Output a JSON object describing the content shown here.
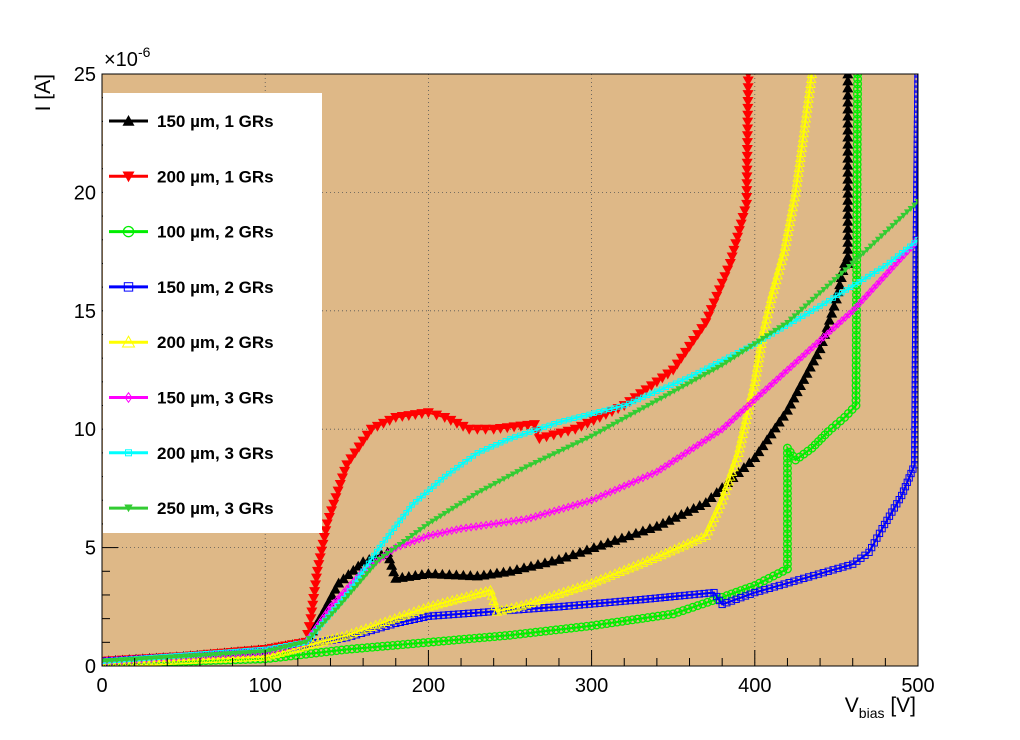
{
  "chart_data": {
    "type": "line",
    "xlabel": "V",
    "xlabel_sub": "bias",
    "xlabel_unit": " [V]",
    "ylabel": "I [A]",
    "y_exponent": "×10",
    "y_exponent_power": "-6",
    "xlim": [
      0,
      500
    ],
    "ylim": [
      0,
      25
    ],
    "x_ticks": [
      0,
      100,
      200,
      300,
      400,
      500
    ],
    "y_ticks": [
      0,
      5,
      10,
      15,
      20,
      25
    ],
    "x_tick_labels": [
      "0",
      "100",
      "200",
      "300",
      "400",
      "500"
    ],
    "y_tick_labels": [
      "0",
      "5",
      "10",
      "15",
      "20",
      "25"
    ],
    "grid": true,
    "plot_background": "#deb887",
    "legend_position": "top-left",
    "series": [
      {
        "name": "150  µm, 1 GRs",
        "color": "#000000",
        "marker": "triangle-up",
        "points": [
          [
            0,
            0.2
          ],
          [
            50,
            0.4
          ],
          [
            100,
            0.7
          ],
          [
            125,
            1.0
          ],
          [
            135,
            2.2
          ],
          [
            145,
            3.5
          ],
          [
            160,
            4.4
          ],
          [
            175,
            4.8
          ],
          [
            180,
            3.7
          ],
          [
            200,
            3.9
          ],
          [
            230,
            3.8
          ],
          [
            250,
            4.0
          ],
          [
            280,
            4.5
          ],
          [
            310,
            5.2
          ],
          [
            340,
            5.9
          ],
          [
            370,
            6.9
          ],
          [
            400,
            8.8
          ],
          [
            420,
            10.8
          ],
          [
            440,
            13.4
          ],
          [
            450,
            15.5
          ],
          [
            455,
            17.0
          ],
          [
            457,
            17.0
          ],
          [
            457,
            25
          ]
        ]
      },
      {
        "name": "200  µm, 1 GRs",
        "color": "#ff0000",
        "marker": "triangle-down",
        "points": [
          [
            0,
            0.2
          ],
          [
            50,
            0.4
          ],
          [
            100,
            0.7
          ],
          [
            125,
            1.0
          ],
          [
            128,
            2.0
          ],
          [
            132,
            4.0
          ],
          [
            138,
            6.0
          ],
          [
            150,
            8.5
          ],
          [
            165,
            10.0
          ],
          [
            180,
            10.5
          ],
          [
            200,
            10.7
          ],
          [
            210,
            10.5
          ],
          [
            225,
            10.0
          ],
          [
            240,
            10.0
          ],
          [
            265,
            10.2
          ],
          [
            268,
            9.6
          ],
          [
            290,
            10.0
          ],
          [
            320,
            11.0
          ],
          [
            350,
            12.5
          ],
          [
            370,
            14.5
          ],
          [
            385,
            17.0
          ],
          [
            395,
            19.5
          ],
          [
            396,
            25
          ]
        ]
      },
      {
        "name": "100  µm, 2 GRs",
        "color": "#00ee00",
        "marker": "circle",
        "points": [
          [
            0,
            0.1
          ],
          [
            100,
            0.3
          ],
          [
            150,
            0.7
          ],
          [
            200,
            1.0
          ],
          [
            250,
            1.3
          ],
          [
            300,
            1.7
          ],
          [
            350,
            2.2
          ],
          [
            380,
            2.9
          ],
          [
            400,
            3.4
          ],
          [
            420,
            4.1
          ],
          [
            420,
            9.2
          ],
          [
            425,
            8.7
          ],
          [
            435,
            9.2
          ],
          [
            445,
            9.9
          ],
          [
            455,
            10.5
          ],
          [
            462,
            11.0
          ],
          [
            463,
            25
          ]
        ]
      },
      {
        "name": "150  µm, 2 GRs",
        "color": "#0000ff",
        "marker": "square",
        "points": [
          [
            0,
            0.2
          ],
          [
            100,
            0.6
          ],
          [
            150,
            1.2
          ],
          [
            180,
            1.8
          ],
          [
            200,
            2.1
          ],
          [
            240,
            2.3
          ],
          [
            280,
            2.5
          ],
          [
            330,
            2.8
          ],
          [
            375,
            3.1
          ],
          [
            380,
            2.6
          ],
          [
            400,
            3.1
          ],
          [
            430,
            3.7
          ],
          [
            460,
            4.3
          ],
          [
            470,
            4.8
          ],
          [
            478,
            5.8
          ],
          [
            490,
            7.2
          ],
          [
            498,
            8.5
          ],
          [
            499,
            18.0
          ],
          [
            500,
            25
          ]
        ]
      },
      {
        "name": "200  µm, 2 GRs",
        "color": "#ffff00",
        "marker": "triangle-open",
        "points": [
          [
            0,
            0.1
          ],
          [
            100,
            0.4
          ],
          [
            150,
            1.3
          ],
          [
            200,
            2.5
          ],
          [
            238,
            3.2
          ],
          [
            242,
            2.3
          ],
          [
            260,
            2.6
          ],
          [
            300,
            3.5
          ],
          [
            340,
            4.6
          ],
          [
            370,
            5.5
          ],
          [
            380,
            7.0
          ],
          [
            390,
            9.0
          ],
          [
            400,
            12.0
          ],
          [
            405,
            14.0
          ],
          [
            410,
            15.5
          ],
          [
            418,
            17.5
          ],
          [
            425,
            20.0
          ],
          [
            430,
            22.5
          ],
          [
            435,
            25
          ]
        ]
      },
      {
        "name": "150  µm, 3 GRs",
        "color": "#ff00ff",
        "marker": "diamond",
        "points": [
          [
            0,
            0.2
          ],
          [
            100,
            0.6
          ],
          [
            125,
            1.0
          ],
          [
            140,
            2.5
          ],
          [
            160,
            4.0
          ],
          [
            180,
            5.0
          ],
          [
            200,
            5.5
          ],
          [
            220,
            5.8
          ],
          [
            260,
            6.2
          ],
          [
            300,
            7.0
          ],
          [
            340,
            8.2
          ],
          [
            380,
            10.0
          ],
          [
            420,
            12.5
          ],
          [
            460,
            15.0
          ],
          [
            500,
            18.0
          ]
        ]
      },
      {
        "name": "200  µm, 3 GRs",
        "color": "#00ffff",
        "marker": "square-small",
        "points": [
          [
            0,
            0.2
          ],
          [
            100,
            0.7
          ],
          [
            125,
            1.0
          ],
          [
            150,
            3.0
          ],
          [
            170,
            5.0
          ],
          [
            190,
            6.8
          ],
          [
            210,
            8.0
          ],
          [
            230,
            9.0
          ],
          [
            250,
            9.6
          ],
          [
            280,
            10.3
          ],
          [
            320,
            11.0
          ],
          [
            360,
            12.2
          ],
          [
            400,
            13.6
          ],
          [
            440,
            15.2
          ],
          [
            480,
            16.9
          ],
          [
            500,
            18.0
          ]
        ]
      },
      {
        "name": "250  µm, 3 GRs",
        "color": "#33cc33",
        "marker": "triangle-down-small",
        "points": [
          [
            0,
            0.2
          ],
          [
            100,
            0.6
          ],
          [
            125,
            1.0
          ],
          [
            145,
            2.5
          ],
          [
            170,
            4.5
          ],
          [
            200,
            6.0
          ],
          [
            230,
            7.3
          ],
          [
            260,
            8.4
          ],
          [
            300,
            9.7
          ],
          [
            340,
            11.2
          ],
          [
            380,
            12.7
          ],
          [
            420,
            14.5
          ],
          [
            460,
            17.0
          ],
          [
            500,
            19.6
          ]
        ]
      }
    ]
  }
}
